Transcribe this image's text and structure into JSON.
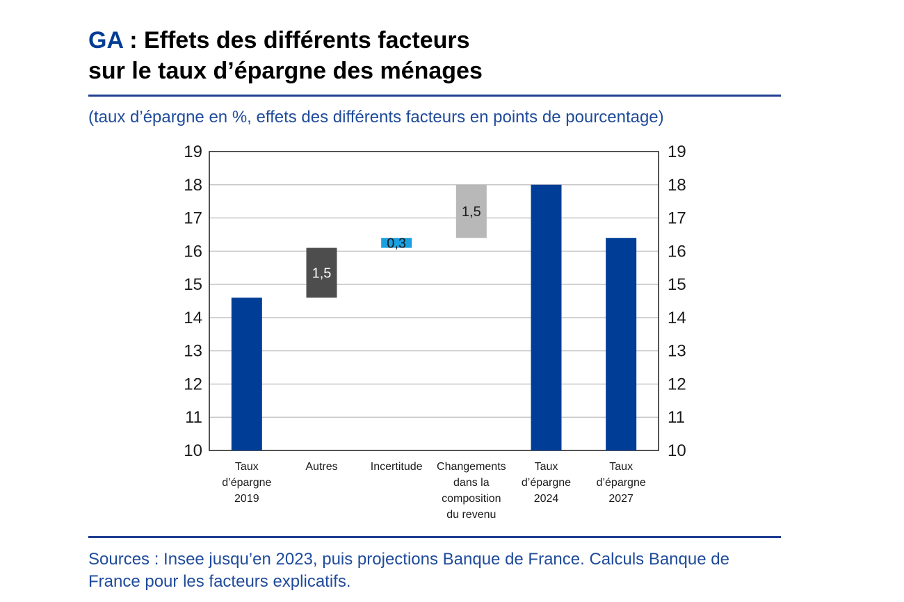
{
  "title": {
    "code": "GA",
    "separator": " : ",
    "line1": "Effets des différents facteurs",
    "line2": "sur le taux d’épargne des ménages"
  },
  "subtitle": "(taux d’épargne en %, effets des différents facteurs en points de pourcentage)",
  "source": "Sources : Insee jusqu’en 2023, puis projections Banque de France. Calculs Banque de France pour les facteurs explicatifs.",
  "chart_data": {
    "type": "bar",
    "subtype": "waterfall",
    "title": "Effets des différents facteurs sur le taux d’épargne des ménages",
    "ylim": [
      10,
      19
    ],
    "yticks": [
      "10",
      "11",
      "12",
      "13",
      "14",
      "15",
      "16",
      "17",
      "18",
      "19"
    ],
    "y2ticks": [
      "10",
      "11",
      "12",
      "13",
      "14",
      "15",
      "16",
      "17",
      "18",
      "19"
    ],
    "gridlines": true,
    "categories": [
      [
        "Taux",
        "d’épargne",
        "2019"
      ],
      [
        "Autres"
      ],
      [
        "Incertitude"
      ],
      [
        "Changements",
        "dans la",
        "composition",
        "du revenu"
      ],
      [
        "Taux",
        "d’épargne",
        "2024"
      ],
      [
        "Taux",
        "d’épargne",
        "2027"
      ]
    ],
    "bars": [
      {
        "base": 10,
        "top": 14.6,
        "color": "#003d96",
        "label": ""
      },
      {
        "base": 14.6,
        "top": 16.1,
        "color": "#4d4d4d",
        "label": "1,5",
        "label_color": "#ffffff"
      },
      {
        "base": 16.1,
        "top": 16.4,
        "color": "#19a0e0",
        "label": "0,3",
        "label_color": "#1a1a1a"
      },
      {
        "base": 16.4,
        "top": 18.0,
        "color": "#b8b8b8",
        "label": "1,5",
        "label_color": "#1a1a1a"
      },
      {
        "base": 10,
        "top": 18.0,
        "color": "#003d96",
        "label": ""
      },
      {
        "base": 10,
        "top": 16.4,
        "color": "#003d96",
        "label": ""
      }
    ]
  }
}
